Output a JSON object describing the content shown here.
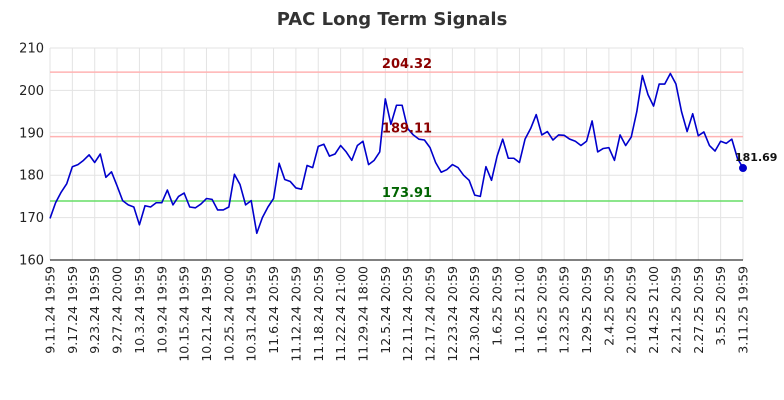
{
  "chart_data": {
    "type": "line",
    "title": "PAC Long Term Signals",
    "xlabel": "",
    "ylabel": "",
    "ylim": [
      160,
      210
    ],
    "yticks": [
      160,
      170,
      180,
      190,
      200,
      210
    ],
    "grid": true,
    "x_tick_labels": [
      "9.11.24 19:59",
      "9.17.24 19:59",
      "9.23.24 19:59",
      "9.27.24 20:00",
      "10.3.24 19:59",
      "10.9.24 19:59",
      "10.15.24 19:59",
      "10.21.24 19:59",
      "10.25.24 20:00",
      "10.31.24 19:59",
      "11.6.24 20:59",
      "11.12.24 20:59",
      "11.18.24 20:59",
      "11.22.24 21:00",
      "11.29.24 18:00",
      "12.5.24 20:59",
      "12.11.24 20:59",
      "12.17.24 20:59",
      "12.23.24 20:59",
      "12.30.24 20:59",
      "1.6.25 20:59",
      "1.10.25 21:00",
      "1.16.25 20:59",
      "1.23.25 20:59",
      "1.29.25 20:59",
      "2.4.25 20:59",
      "2.10.25 20:59",
      "2.14.25 21:00",
      "2.21.25 20:59",
      "2.27.25 20:59",
      "3.5.25 20:59",
      "3.11.25 19:59"
    ],
    "series": [
      {
        "name": "",
        "color": "#0000cc",
        "values": [
          169.8,
          173.5,
          176.0,
          178.0,
          182.0,
          182.5,
          183.5,
          184.8,
          183.0,
          185.0,
          179.5,
          180.8,
          177.5,
          174.0,
          173.0,
          172.5,
          168.3,
          172.8,
          172.5,
          173.5,
          173.5,
          176.5,
          173.0,
          175.0,
          175.8,
          172.5,
          172.3,
          173.2,
          174.5,
          174.3,
          171.8,
          171.8,
          172.5,
          180.2,
          177.8,
          173.0,
          174.0,
          166.3,
          170.0,
          172.5,
          174.5,
          182.8,
          179.0,
          178.5,
          177.0,
          176.7,
          182.3,
          181.8,
          186.8,
          187.3,
          184.5,
          185.0,
          187.0,
          185.5,
          183.5,
          187.0,
          188.0,
          182.5,
          183.5,
          185.5,
          198.0,
          192.0,
          196.5,
          196.5,
          191.0,
          189.5,
          188.5,
          188.3,
          186.5,
          183.0,
          180.7,
          181.3,
          182.5,
          181.8,
          180.0,
          178.8,
          175.3,
          175.0,
          182.0,
          178.8,
          184.5,
          188.5,
          184.0,
          184.0,
          183.0,
          188.5,
          191.0,
          194.3,
          189.5,
          190.3,
          188.3,
          189.5,
          189.4,
          188.5,
          188.0,
          187.0,
          188.0,
          192.8,
          185.5,
          186.3,
          186.5,
          183.5,
          189.5,
          187.0,
          189.0,
          195.0,
          203.5,
          199.0,
          196.3,
          201.5,
          201.5,
          204.0,
          201.5,
          195.0,
          190.3,
          194.5,
          189.3,
          190.2,
          187.0,
          185.7,
          188.0,
          187.5,
          188.5,
          184.0,
          181.69
        ]
      }
    ],
    "levels": [
      {
        "value": 204.32,
        "label": "204.32",
        "line_color": "#ffb3b3",
        "text_color": "#8b0000"
      },
      {
        "value": 189.11,
        "label": "189.11",
        "line_color": "#ffb3b3",
        "text_color": "#8b0000"
      },
      {
        "value": 173.91,
        "label": "173.91",
        "line_color": "#66dd66",
        "text_color": "#006400"
      }
    ],
    "last_point": {
      "value": 181.69,
      "label": "181.69",
      "color": "#0000cc"
    }
  }
}
